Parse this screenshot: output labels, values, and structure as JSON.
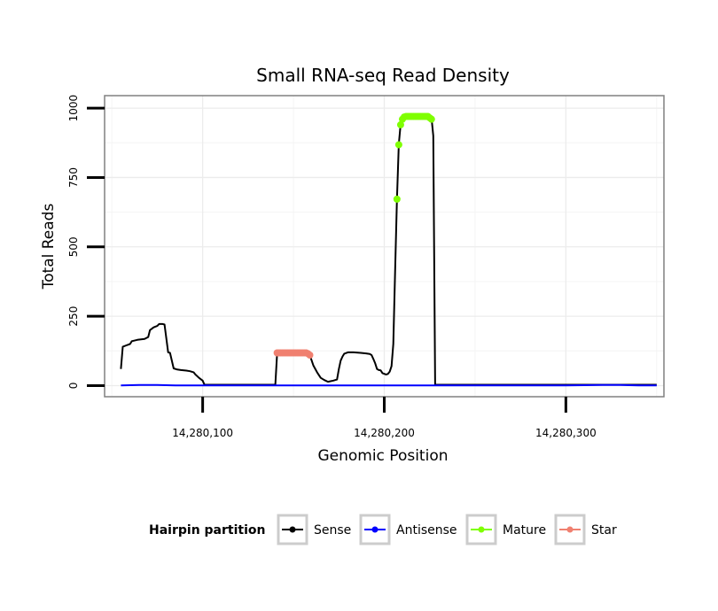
{
  "chart_data": {
    "type": "line",
    "title": "Small RNA-seq Read Density",
    "xlabel": "Genomic Position",
    "ylabel": "Total Reads",
    "xlim": [
      14280046,
      14280354
    ],
    "ylim": [
      -40,
      1045
    ],
    "x_ticks": [
      {
        "value": 14280100,
        "label": "14,280,100"
      },
      {
        "value": 14280200,
        "label": "14,280,200"
      },
      {
        "value": 14280300,
        "label": "14,280,300"
      }
    ],
    "y_ticks": [
      {
        "value": 0,
        "label": "0"
      },
      {
        "value": 250,
        "label": "250"
      },
      {
        "value": 500,
        "label": "500"
      },
      {
        "value": 750,
        "label": "750"
      },
      {
        "value": 1000,
        "label": "1000"
      }
    ],
    "grid": true,
    "legend": {
      "title": "Hairpin partition",
      "position": "bottom",
      "entries": [
        {
          "name": "Sense",
          "color": "#000000"
        },
        {
          "name": "Antisense",
          "color": "#0000ff"
        },
        {
          "name": "Mature",
          "color": "#7fff00"
        },
        {
          "name": "Star",
          "color": "#f08070"
        }
      ]
    },
    "series": [
      {
        "name": "Sense",
        "color": "#000000",
        "style": "line",
        "x": [
          14280055,
          14280056,
          14280058,
          14280060,
          14280061,
          14280064,
          14280068,
          14280070,
          14280071,
          14280073,
          14280075,
          14280076,
          14280078,
          14280079,
          14280081,
          14280082,
          14280084,
          14280086,
          14280088,
          14280091,
          14280093,
          14280095,
          14280096,
          14280098,
          14280100,
          14280101,
          14280120,
          14280140,
          14280141,
          14280142,
          14280147,
          14280151,
          14280156,
          14280159,
          14280161,
          14280163,
          14280165,
          14280167,
          14280169,
          14280172,
          14280174,
          14280175,
          14280176,
          14280177,
          14280178,
          14280180,
          14280183,
          14280187,
          14280190,
          14280192,
          14280193,
          14280194,
          14280195,
          14280196,
          14280197,
          14280198,
          14280199,
          14280201,
          14280202,
          14280203,
          14280204,
          14280205,
          14280206,
          14280207,
          14280208,
          14280209,
          14280210,
          14280211,
          14280212,
          14280214,
          14280218,
          14280222,
          14280226,
          14280227,
          14280228,
          14280260,
          14280300,
          14280350
        ],
        "y": [
          60,
          140,
          145,
          150,
          160,
          165,
          168,
          175,
          200,
          210,
          215,
          222,
          222,
          220,
          120,
          118,
          62,
          58,
          56,
          54,
          52,
          48,
          40,
          28,
          18,
          3,
          3,
          3,
          115,
          118,
          118,
          118,
          118,
          110,
          72,
          48,
          28,
          20,
          14,
          18,
          22,
          60,
          90,
          105,
          115,
          120,
          120,
          118,
          116,
          114,
          110,
          96,
          80,
          60,
          56,
          55,
          45,
          40,
          42,
          50,
          70,
          150,
          420,
          670,
          870,
          940,
          960,
          968,
          970,
          970,
          970,
          970,
          965,
          900,
          3,
          3,
          3,
          3
        ]
      },
      {
        "name": "Antisense",
        "color": "#0000ff",
        "style": "line",
        "x": [
          14280055,
          14280065,
          14280075,
          14280085,
          14280100,
          14280150,
          14280200,
          14280250,
          14280300,
          14280320,
          14280330,
          14280340,
          14280350
        ],
        "y": [
          1,
          2,
          2,
          1,
          1,
          1,
          1,
          1,
          1,
          2,
          2,
          1,
          1
        ]
      },
      {
        "name": "Mature",
        "color": "#7fff00",
        "style": "points",
        "x": [
          14280207,
          14280208,
          14280209,
          14280210,
          14280211,
          14280212,
          14280213,
          14280214,
          14280215,
          14280216,
          14280217,
          14280218,
          14280219,
          14280220,
          14280221,
          14280222,
          14280223,
          14280224,
          14280225,
          14280226
        ],
        "y": [
          672,
          868,
          940,
          960,
          968,
          970,
          970,
          970,
          970,
          970,
          970,
          970,
          970,
          970,
          970,
          970,
          970,
          970,
          965,
          960
        ]
      },
      {
        "name": "Star",
        "color": "#f08070",
        "style": "points",
        "x": [
          14280141,
          14280142,
          14280143,
          14280144,
          14280145,
          14280146,
          14280147,
          14280148,
          14280149,
          14280150,
          14280151,
          14280152,
          14280153,
          14280154,
          14280155,
          14280156,
          14280157,
          14280158,
          14280159
        ],
        "y": [
          118,
          118,
          118,
          118,
          118,
          118,
          118,
          118,
          118,
          118,
          118,
          118,
          118,
          118,
          118,
          118,
          118,
          115,
          110
        ]
      }
    ]
  }
}
